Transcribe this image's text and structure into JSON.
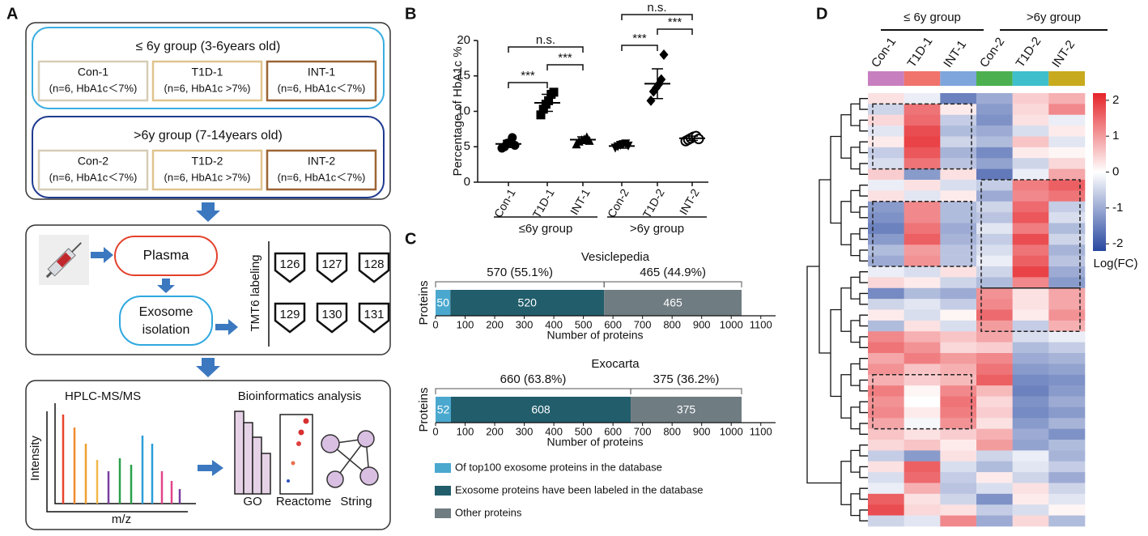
{
  "panel_labels": [
    "A",
    "B",
    "C",
    "D"
  ],
  "panel_a": {
    "groups": [
      {
        "title": "≤ 6y group (3-6years old)",
        "boxes": [
          {
            "name": "Con-1",
            "note": "(n=6, HbA1c＜7%)"
          },
          {
            "name": "T1D-1",
            "note": "(n=6, HbA1c >7%)"
          },
          {
            "name": "INT-1",
            "note": "(n=6, HbA1c＜7%)"
          }
        ]
      },
      {
        "title": ">6y group (7-14years old)",
        "boxes": [
          {
            "name": "Con-2",
            "note": "(n=6, HbA1c＜7%)"
          },
          {
            "name": "T1D-2",
            "note": "(n=6, HbA1c >7%)"
          },
          {
            "name": "INT-2",
            "note": "(n=6, HbA1c＜7%)"
          }
        ]
      }
    ],
    "plasma": "Plasma",
    "exosome": [
      "Exosome",
      "isolation"
    ],
    "tmt_label": "TMT6 labeling",
    "tmt_tags": [
      "126",
      "127",
      "128",
      "129",
      "130",
      "131"
    ],
    "ms_title": "HPLC-MS/MS",
    "ms_ylabel": "Intensity",
    "ms_xlabel": "m/z",
    "bio_title": "Bioinformatics analysis",
    "bio_tools": [
      "GO",
      "Reactome",
      "String"
    ]
  },
  "chart_data": [
    {
      "type": "dot",
      "ylabel": "Percentage of HbA1c %",
      "ylim": [
        0,
        20
      ],
      "yticks": [
        0,
        5,
        10,
        15,
        20
      ],
      "categories": [
        "Con-1",
        "T1D-1",
        "INT-1",
        "Con-2",
        "T1D-2",
        "INT-2"
      ],
      "groups": [
        "≤6y group",
        ">6y group"
      ],
      "points": [
        [
          4.8,
          5.0,
          5.5,
          5.6,
          6.3,
          5.2
        ],
        [
          9.5,
          10.3,
          11.0,
          11.5,
          12.4,
          12.7
        ],
        [
          5.4,
          5.8,
          6.0,
          6.1,
          6.4,
          5.9
        ],
        [
          4.8,
          5.0,
          5.2,
          5.3,
          5.4,
          5.1
        ],
        [
          11.5,
          12.8,
          13.3,
          13.8,
          14.5,
          18.0
        ],
        [
          5.8,
          6.0,
          6.2,
          6.4,
          6.5,
          6.1
        ]
      ],
      "means": [
        5.4,
        11.2,
        6.0,
        5.1,
        13.9,
        6.2
      ],
      "sds": [
        0.5,
        1.2,
        0.4,
        0.3,
        2.1,
        0.3
      ],
      "markers": [
        "circle",
        "square",
        "triangle",
        "triangle-down",
        "diamond",
        "open-circle"
      ],
      "color": "#000000",
      "annotations": [
        "***",
        "***",
        "n.s.",
        "***",
        "***",
        "n.s."
      ]
    },
    {
      "type": "stacked-barh",
      "ylabel": "Proteins",
      "xlabel": "Number of proteins",
      "xlim": [
        0,
        1150
      ],
      "xticks": [
        0,
        100,
        200,
        300,
        400,
        500,
        600,
        700,
        800,
        900,
        1000,
        1100
      ],
      "series": [
        {
          "name": "Of top100 exosome proteins in the database",
          "color": "#4aa8cf"
        },
        {
          "name": "Exosome proteins have been labeled in the database",
          "color": "#215d6b"
        },
        {
          "name": "Other proteins",
          "color": "#6f7c82"
        }
      ],
      "subplots": [
        {
          "title": "Vesiclepedia",
          "values": [
            50,
            520,
            465
          ],
          "annotations": [
            "570 (55.1%)",
            "465 (44.9%)"
          ]
        },
        {
          "title": "Exocarta",
          "values": [
            52,
            608,
            375
          ],
          "annotations": [
            "660 (63.8%)",
            "375 (36.2%)"
          ]
        }
      ]
    },
    {
      "type": "heatmap",
      "groups": [
        "≤ 6y group",
        ">6y group"
      ],
      "columns": [
        "Con-1",
        "T1D-1",
        "INT-1",
        "Con-2",
        "T1D-2",
        "INT-2"
      ],
      "column_colors": [
        "#c77fc0",
        "#f0736c",
        "#7ea6dc",
        "#4cb050",
        "#3fbfcc",
        "#c8aa1e"
      ],
      "zlim": [
        -2.2,
        2.2
      ],
      "colorbar_ticks": [
        2,
        1,
        0,
        -1,
        -2
      ],
      "colorbar_label": "Log(FC)",
      "values": [
        [
          0.3,
          -0.2,
          -1.5,
          -1.0,
          0.5,
          0.8
        ],
        [
          -0.5,
          1.4,
          0.2,
          -1.2,
          0.4,
          1.2
        ],
        [
          0.4,
          1.5,
          -0.6,
          -1.3,
          0.3,
          -0.2
        ],
        [
          -0.3,
          1.8,
          -0.8,
          -1.0,
          -0.4,
          0.2
        ],
        [
          0.2,
          1.9,
          -0.5,
          -0.8,
          0.6,
          -0.3
        ],
        [
          -0.6,
          1.7,
          -0.9,
          -1.4,
          0.2,
          0.1
        ],
        [
          -0.4,
          1.4,
          -0.7,
          -1.1,
          -0.5,
          0.4
        ],
        [
          0.5,
          -1.2,
          0.3,
          -1.6,
          -0.2,
          0.9
        ],
        [
          -0.2,
          0.3,
          -0.4,
          -0.6,
          1.3,
          1.6
        ],
        [
          0.3,
          -0.3,
          0.2,
          -1.0,
          1.2,
          1.4
        ],
        [
          -1.2,
          1.2,
          -0.8,
          -0.5,
          1.5,
          -0.6
        ],
        [
          -1.3,
          1.2,
          -0.8,
          -0.7,
          1.7,
          -0.4
        ],
        [
          -1.5,
          1.4,
          -1.0,
          -0.3,
          1.3,
          -0.8
        ],
        [
          -1.2,
          1.6,
          -0.9,
          -0.6,
          1.8,
          -0.5
        ],
        [
          -0.8,
          1.0,
          -0.7,
          -0.4,
          1.4,
          -0.9
        ],
        [
          -1.0,
          1.1,
          -0.7,
          -0.2,
          1.6,
          -0.7
        ],
        [
          -0.2,
          -0.4,
          0.3,
          -0.5,
          1.9,
          -1.0
        ],
        [
          0.4,
          0.2,
          -0.5,
          -0.8,
          1.2,
          -1.2
        ],
        [
          -1.4,
          -0.8,
          -1.0,
          1.1,
          0.3,
          0.9
        ],
        [
          -0.5,
          -0.3,
          -0.6,
          1.2,
          0.3,
          0.9
        ],
        [
          0.2,
          -0.4,
          0.1,
          1.5,
          0.2,
          1.1
        ],
        [
          -0.8,
          0.3,
          -0.4,
          1.0,
          -0.6,
          0.8
        ],
        [
          1.2,
          0.8,
          0.6,
          0.9,
          -0.4,
          -0.2
        ],
        [
          1.4,
          1.1,
          0.4,
          0.5,
          -0.8,
          -0.6
        ],
        [
          0.9,
          1.3,
          1.0,
          1.2,
          -1.0,
          -0.9
        ],
        [
          1.1,
          0.6,
          0.8,
          1.4,
          -1.2,
          -1.1
        ],
        [
          0.8,
          0.5,
          0.7,
          1.6,
          -1.4,
          -1.3
        ],
        [
          1.3,
          0.1,
          1.2,
          0.7,
          -1.5,
          -1.2
        ],
        [
          1.1,
          0.0,
          1.4,
          0.4,
          -1.3,
          -1.0
        ],
        [
          1.2,
          0.2,
          1.3,
          0.5,
          -1.4,
          -1.2
        ],
        [
          0.9,
          -0.1,
          1.1,
          0.3,
          -1.2,
          -0.9
        ],
        [
          0.6,
          0.3,
          0.5,
          0.8,
          -1.0,
          -1.3
        ],
        [
          0.4,
          0.6,
          0.2,
          1.0,
          -1.1,
          -0.8
        ],
        [
          -0.6,
          -1.2,
          0.3,
          -0.5,
          -0.2,
          -0.9
        ],
        [
          0.3,
          1.6,
          -0.4,
          -0.8,
          -0.3,
          -0.6
        ],
        [
          -0.4,
          1.5,
          -0.6,
          0.2,
          -0.5,
          -1.0
        ],
        [
          -0.2,
          0.8,
          -0.7,
          -0.4,
          0.3,
          -0.5
        ],
        [
          1.6,
          0.3,
          -0.5,
          -1.3,
          0.2,
          -0.3
        ],
        [
          1.8,
          0.4,
          0.3,
          -0.6,
          -0.4,
          0.1
        ],
        [
          -0.5,
          -0.3,
          1.2,
          -1.0,
          0.4,
          -0.8
        ]
      ]
    }
  ]
}
